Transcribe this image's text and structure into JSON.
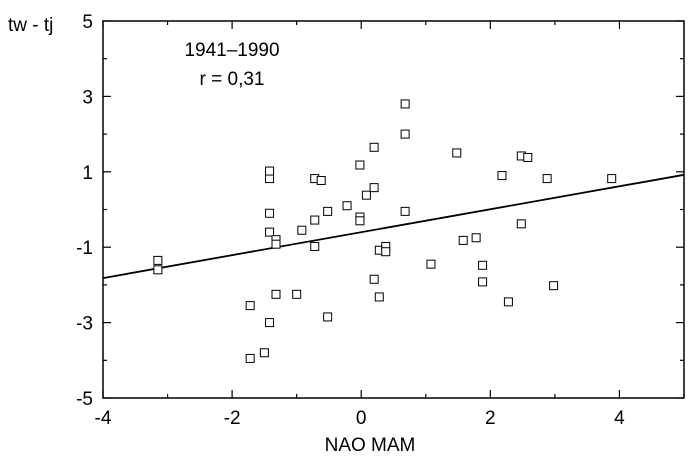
{
  "chart_data": {
    "type": "scatter",
    "xlabel": "NAO MAM",
    "ylabel": "tw - tj",
    "xlim": [
      -4,
      5
    ],
    "ylim": [
      -5,
      5
    ],
    "xticks": [
      -4,
      -2,
      0,
      2,
      4
    ],
    "yticks": [
      -5,
      -3,
      -1,
      1,
      3,
      5
    ],
    "xtick_labels": [
      "-4",
      "-2",
      "0",
      "2",
      "4"
    ],
    "ytick_labels": [
      "-5",
      "-3",
      "-1",
      "1",
      "3",
      "5"
    ],
    "grid": false,
    "annotations": [
      "1941–1990",
      "r = 0,31"
    ],
    "trendline": {
      "x": [
        -4,
        5
      ],
      "y": [
        -1.82,
        0.92
      ]
    },
    "points": [
      {
        "x": -3.15,
        "y": -1.35
      },
      {
        "x": -3.15,
        "y": -1.6
      },
      {
        "x": -1.72,
        "y": -2.55
      },
      {
        "x": -1.72,
        "y": -3.95
      },
      {
        "x": -1.5,
        "y": -3.8
      },
      {
        "x": -1.42,
        "y": -3.0
      },
      {
        "x": -1.42,
        "y": -0.1
      },
      {
        "x": -1.42,
        "y": 0.82
      },
      {
        "x": -1.42,
        "y": 1.02
      },
      {
        "x": -1.42,
        "y": -0.6
      },
      {
        "x": -1.32,
        "y": -0.8
      },
      {
        "x": -1.32,
        "y": -0.92
      },
      {
        "x": -1.32,
        "y": -2.25
      },
      {
        "x": -1.0,
        "y": -2.25
      },
      {
        "x": -0.92,
        "y": -0.55
      },
      {
        "x": -0.72,
        "y": 0.82
      },
      {
        "x": -0.72,
        "y": -0.28
      },
      {
        "x": -0.72,
        "y": -0.98
      },
      {
        "x": -0.62,
        "y": 0.77
      },
      {
        "x": -0.52,
        "y": -0.05
      },
      {
        "x": -0.52,
        "y": -2.85
      },
      {
        "x": -0.22,
        "y": 0.1
      },
      {
        "x": -0.02,
        "y": -0.2
      },
      {
        "x": -0.02,
        "y": -0.3
      },
      {
        "x": -0.02,
        "y": 1.18
      },
      {
        "x": 0.08,
        "y": 0.38
      },
      {
        "x": 0.2,
        "y": 1.65
      },
      {
        "x": 0.2,
        "y": 0.58
      },
      {
        "x": 0.2,
        "y": -1.85
      },
      {
        "x": 0.28,
        "y": -1.08
      },
      {
        "x": 0.28,
        "y": -2.32
      },
      {
        "x": 0.38,
        "y": -0.98
      },
      {
        "x": 0.38,
        "y": -1.12
      },
      {
        "x": 0.68,
        "y": 2.8
      },
      {
        "x": 0.68,
        "y": 2.0
      },
      {
        "x": 0.68,
        "y": -0.05
      },
      {
        "x": 1.08,
        "y": -1.45
      },
      {
        "x": 1.48,
        "y": 1.5
      },
      {
        "x": 1.58,
        "y": -0.82
      },
      {
        "x": 1.78,
        "y": -0.75
      },
      {
        "x": 1.88,
        "y": -1.48
      },
      {
        "x": 1.88,
        "y": -1.92
      },
      {
        "x": 2.18,
        "y": 0.9
      },
      {
        "x": 2.28,
        "y": -2.45
      },
      {
        "x": 2.48,
        "y": 1.42
      },
      {
        "x": 2.48,
        "y": -0.38
      },
      {
        "x": 2.58,
        "y": 1.38
      },
      {
        "x": 2.88,
        "y": 0.82
      },
      {
        "x": 2.98,
        "y": -2.02
      },
      {
        "x": 3.88,
        "y": 0.82
      }
    ]
  }
}
